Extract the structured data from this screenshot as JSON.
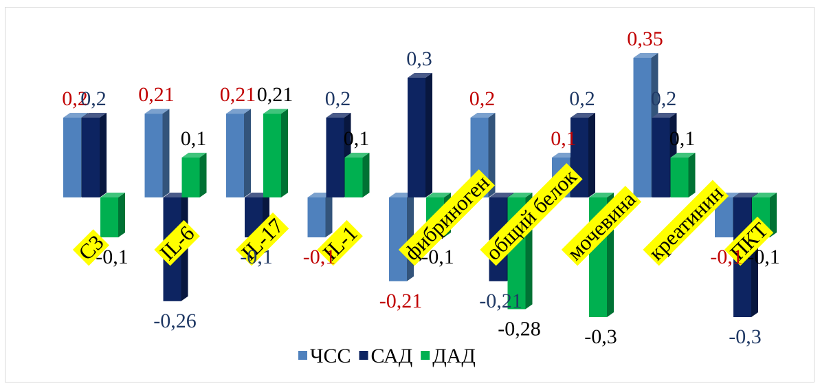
{
  "chart_data": {
    "type": "bar",
    "categories": [
      "С3",
      "IL-6",
      "IL-17",
      "IL-1",
      "фибриноген",
      "общий белок",
      "мочевина",
      "креатинин",
      "ПКТ"
    ],
    "series": [
      {
        "name": "ЧСС",
        "color": "#4f81bd",
        "values": [
          0.2,
          0.21,
          0.21,
          -0.1,
          -0.21,
          0.2,
          0.1,
          0.35,
          -0.1
        ],
        "labels": [
          "0,2",
          "0,21",
          "0,21",
          "-0,1",
          "-0,21",
          "0,2",
          "0,1",
          "0,35",
          "-0,1"
        ],
        "label_color": "#c00000"
      },
      {
        "name": "САД",
        "color": "#0d2461",
        "values": [
          0.2,
          -0.26,
          -0.1,
          0.2,
          0.3,
          -0.21,
          0.2,
          0.2,
          -0.3
        ],
        "labels": [
          "0,2",
          "-0,26",
          "-0,1",
          "0,2",
          "0,3",
          "-0,21",
          "0,2",
          "0,2",
          "-0,3"
        ],
        "label_color": "#1f3864"
      },
      {
        "name": "ДАД",
        "color": "#00b050",
        "values": [
          -0.1,
          0.1,
          0.21,
          0.1,
          -0.1,
          -0.28,
          -0.3,
          0.1,
          -0.1
        ],
        "labels": [
          "-0,1",
          "0,1",
          "0,21",
          "0,1",
          "-0,1",
          "-0,28",
          "-0,3",
          "0,1",
          "-0,1"
        ],
        "label_color": "#000000"
      }
    ],
    "ylim": [
      -0.3,
      0.35
    ],
    "grid": false,
    "legend_position": "bottom",
    "title": "",
    "xlabel": "",
    "ylabel": ""
  }
}
